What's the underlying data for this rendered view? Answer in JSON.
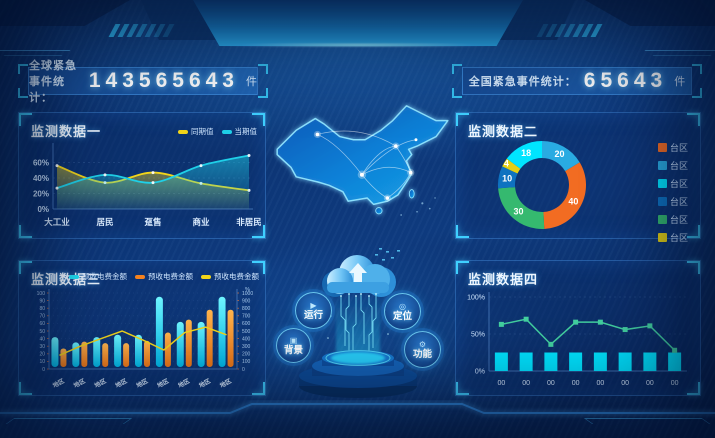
{
  "stats": {
    "left": {
      "label": "全球紧急事件统计：",
      "value": "143565643",
      "unit": "件"
    },
    "right": {
      "label": "全国紧急事件统计：",
      "value": "65643",
      "unit": "件"
    }
  },
  "panels": {
    "p1": {
      "title": "监测数据一"
    },
    "p2": {
      "title": "监测数据二"
    },
    "p3": {
      "title": "监测数据三"
    },
    "p4": {
      "title": "监测数据四"
    }
  },
  "center": {
    "buttons": [
      {
        "id": "run",
        "label": "运行"
      },
      {
        "id": "locate",
        "label": "定位"
      },
      {
        "id": "background",
        "label": "背景"
      },
      {
        "id": "function",
        "label": "功能"
      }
    ]
  },
  "icons": {
    "run": "▶",
    "locate": "◎",
    "background": "▣",
    "function": "⚙"
  },
  "colors": {
    "accent_cyan": "#00e4ff",
    "accent_orange": "#f5821f",
    "accent_yellow": "#f2d51a",
    "bracket": "#3fd0ff",
    "panel_border": "#2f7fd0"
  },
  "chart_data": [
    {
      "id": "monitor1",
      "type": "area",
      "title": "监测数据一",
      "categories": [
        "大工业",
        "居民",
        "趸售",
        "商业",
        "非居民"
      ],
      "series": [
        {
          "name": "同期值",
          "color": "#f2d51a",
          "values": [
            56,
            34,
            47,
            33,
            24
          ]
        },
        {
          "name": "当期值",
          "color": "#1fd0e8",
          "values": [
            27,
            44,
            34,
            56,
            69
          ]
        }
      ],
      "yticks": [
        "0%",
        "20%",
        "40%",
        "60%"
      ],
      "ylim": [
        0,
        80
      ],
      "grid": true,
      "legend_position": "top-right"
    },
    {
      "id": "monitor2",
      "type": "pie",
      "donut": true,
      "title": "监测数据二",
      "slices": [
        {
          "label": "台区",
          "value": 20,
          "color": "#29abe2"
        },
        {
          "label": "台区",
          "value": 40,
          "color": "#f26c22"
        },
        {
          "label": "台区",
          "value": 30,
          "color": "#35b96f"
        },
        {
          "label": "台区",
          "value": 10,
          "color": "#0e72c0"
        },
        {
          "label": "台区",
          "value": 4,
          "color": "#e3cf13"
        },
        {
          "label": "台区",
          "value": 18,
          "color": "#00e4ff"
        }
      ],
      "legend": [
        {
          "label": "台区",
          "color": "#f26c22"
        },
        {
          "label": "台区",
          "color": "#29abe2"
        },
        {
          "label": "台区",
          "color": "#00e4ff"
        },
        {
          "label": "台区",
          "color": "#0e72c0"
        },
        {
          "label": "台区",
          "color": "#35b96f"
        },
        {
          "label": "台区",
          "color": "#e3cf13"
        }
      ],
      "legend_position": "right"
    },
    {
      "id": "monitor3",
      "type": "bar",
      "title": "监测数据三",
      "categories": [
        "地区",
        "地区",
        "地区",
        "地区",
        "地区",
        "地区",
        "地区",
        "地区",
        "地区"
      ],
      "series": [
        {
          "name": "预收电费金额",
          "kind": "bar",
          "color": "#1fe3f6",
          "axis": "left",
          "values": [
            42,
            35,
            42,
            45,
            45,
            95,
            62,
            62,
            95
          ]
        },
        {
          "name": "预收电费金额",
          "kind": "bar",
          "color": "#f5821f",
          "axis": "left",
          "values": [
            27,
            36,
            34,
            34,
            37,
            48,
            65,
            78,
            78
          ]
        },
        {
          "name": "预收电费金额",
          "kind": "line",
          "color": "#f2d51a",
          "axis": "right",
          "values": [
            180,
            300,
            400,
            500,
            380,
            250,
            480,
            550,
            450
          ]
        }
      ],
      "left_yticks": [
        0,
        10,
        20,
        30,
        40,
        50,
        60,
        70,
        80,
        90,
        100
      ],
      "right_yticks": [
        0,
        100,
        200,
        300,
        400,
        500,
        600,
        700,
        800,
        900,
        1000
      ],
      "right_axis_label": "%",
      "left_ylim": [
        0,
        100
      ],
      "right_ylim": [
        0,
        1000
      ]
    },
    {
      "id": "monitor4",
      "type": "line",
      "title": "监测数据四",
      "categories": [
        "00",
        "00",
        "00",
        "00",
        "00",
        "00",
        "00",
        "00"
      ],
      "series": [
        {
          "kind": "bar",
          "color": "#00e4ff",
          "values": [
            25,
            25,
            25,
            25,
            25,
            25,
            25,
            25
          ]
        },
        {
          "kind": "line",
          "color": "#43d1a0",
          "values": [
            63,
            70,
            36,
            66,
            66,
            56,
            61,
            28
          ]
        }
      ],
      "yticks": [
        "0%",
        "50%",
        "100%"
      ],
      "ylim": [
        0,
        100
      ]
    }
  ]
}
